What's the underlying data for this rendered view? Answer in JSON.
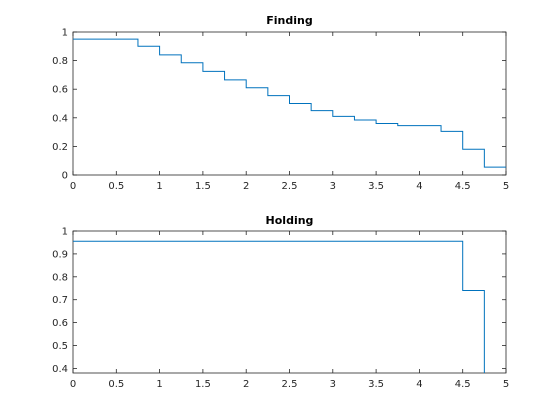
{
  "chart_data": [
    {
      "type": "line",
      "step": true,
      "title": "Finding",
      "xlabel": "",
      "ylabel": "",
      "xlim": [
        0,
        5
      ],
      "ylim": [
        0,
        1
      ],
      "xticks": [
        "0",
        "0.5",
        "1",
        "1.5",
        "2",
        "2.5",
        "3",
        "3.5",
        "4",
        "4.5",
        "5"
      ],
      "yticks": [
        "0",
        "0.2",
        "0.4",
        "0.6",
        "0.8",
        "1"
      ],
      "grid": false,
      "color": "#0072bd",
      "series": [
        {
          "x": [
            0,
            0.75,
            1.0,
            1.25,
            1.5,
            1.75,
            2.0,
            2.25,
            2.5,
            2.75,
            3.0,
            3.25,
            3.5,
            3.75,
            4.25,
            4.5,
            4.75,
            5.0
          ],
          "values": [
            0.95,
            0.9,
            0.84,
            0.785,
            0.725,
            0.665,
            0.61,
            0.555,
            0.5,
            0.45,
            0.41,
            0.385,
            0.36,
            0.345,
            0.305,
            0.18,
            0.055,
            0.055
          ]
        }
      ]
    },
    {
      "type": "line",
      "step": true,
      "title": "Holding",
      "xlabel": "",
      "ylabel": "",
      "xlim": [
        0,
        5
      ],
      "ylim": [
        0.38,
        1
      ],
      "xticks": [
        "0",
        "0.5",
        "1",
        "1.5",
        "2",
        "2.5",
        "3",
        "3.5",
        "4",
        "4.5",
        "5"
      ],
      "yticks": [
        "0.4",
        "0.5",
        "0.6",
        "0.7",
        "0.8",
        "0.9",
        "1"
      ],
      "grid": false,
      "color": "#0072bd",
      "series": [
        {
          "x": [
            0,
            4.5,
            4.75
          ],
          "values": [
            0.955,
            0.74,
            0.38
          ]
        }
      ]
    }
  ]
}
